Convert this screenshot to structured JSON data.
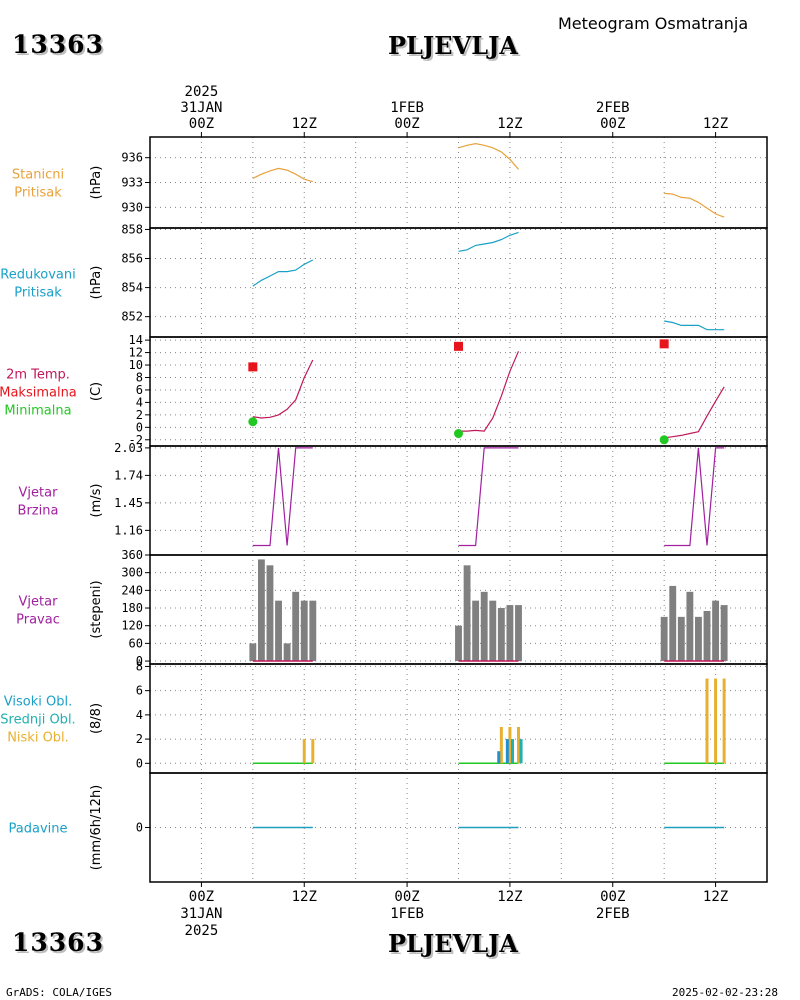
{
  "header": {
    "station_id": "13363",
    "station_name": "PLJEVLJA",
    "subtitle": "Meteogram Osmatranja"
  },
  "footer": {
    "credit": "GrADS: COLA/IGES",
    "timestamp": "2025-02-02-23:28"
  },
  "colors": {
    "pressure": "#e8a23c",
    "reduced": "#1aa0c8",
    "temp": "#c0185a",
    "tmax": "#e8141c",
    "tmin": "#22c822",
    "wind": "#a020a0",
    "dir_bar": "#808080",
    "cloud_low": "#e8b030",
    "cloud_mid": "#20b0b0",
    "cloud_high": "#2090d0",
    "precip": "#20a0c0"
  },
  "chart_data": {
    "type": "meteogram",
    "x_axis": {
      "unit": "hours from 2025-01-31 00Z",
      "range": [
        -6,
        66
      ],
      "top_ticks": [
        {
          "x": 0,
          "lines": [
            "2025",
            "31JAN",
            "00Z"
          ]
        },
        {
          "x": 12,
          "lines": [
            "12Z"
          ]
        },
        {
          "x": 24,
          "lines": [
            "1FEB",
            "00Z"
          ]
        },
        {
          "x": 36,
          "lines": [
            "12Z"
          ]
        },
        {
          "x": 48,
          "lines": [
            "2FEB",
            "00Z"
          ]
        },
        {
          "x": 60,
          "lines": [
            "12Z"
          ]
        }
      ],
      "bottom_ticks": [
        {
          "x": 0,
          "lines": [
            "00Z",
            "31JAN",
            "2025"
          ]
        },
        {
          "x": 12,
          "lines": [
            "12Z"
          ]
        },
        {
          "x": 24,
          "lines": [
            "00Z",
            "1FEB"
          ]
        },
        {
          "x": 36,
          "lines": [
            "12Z"
          ]
        },
        {
          "x": 48,
          "lines": [
            "00Z",
            "2FEB"
          ]
        },
        {
          "x": 60,
          "lines": [
            "12Z"
          ]
        }
      ]
    },
    "panels": [
      {
        "id": "station-pressure",
        "labels": [
          "Stanicni",
          "Pritisak"
        ],
        "label_color": "#e8a23c",
        "unit": "(hPa)",
        "ylim": [
          927.5,
          938.5
        ],
        "yticks": [
          930,
          933,
          936
        ],
        "series": [
          {
            "type": "line",
            "color": "#e8a23c",
            "points": [
              [
                6,
                933.5
              ],
              [
                7,
                934.0
              ],
              [
                8,
                934.4
              ],
              [
                9,
                934.7
              ],
              [
                10,
                934.5
              ],
              [
                11,
                934.0
              ],
              [
                12,
                933.4
              ],
              [
                13,
                933.1
              ]
            ]
          },
          {
            "type": "line",
            "color": "#e8a23c",
            "points": [
              [
                30,
                937.2
              ],
              [
                31,
                937.5
              ],
              [
                32,
                937.7
              ],
              [
                33,
                937.5
              ],
              [
                34,
                937.2
              ],
              [
                35,
                936.7
              ],
              [
                36,
                935.8
              ],
              [
                37,
                934.6
              ]
            ]
          },
          {
            "type": "line",
            "color": "#e8a23c",
            "points": [
              [
                54,
                931.7
              ],
              [
                55,
                931.6
              ],
              [
                56,
                931.2
              ],
              [
                57,
                931.1
              ],
              [
                58,
                930.6
              ],
              [
                59,
                929.9
              ],
              [
                60,
                929.2
              ],
              [
                61,
                928.8
              ]
            ]
          }
        ]
      },
      {
        "id": "reduced-pressure",
        "labels": [
          "Redukovani",
          "Pritisak"
        ],
        "label_color": "#1aa0c8",
        "unit": "(hPa)",
        "ylim": [
          850.6,
          858.1
        ],
        "yticks": [
          852,
          854,
          856,
          858
        ],
        "series": [
          {
            "type": "line",
            "color": "#1aa0c8",
            "points": [
              [
                6,
                854.1
              ],
              [
                7,
                854.5
              ],
              [
                8,
                854.8
              ],
              [
                9,
                855.1
              ],
              [
                10,
                855.1
              ],
              [
                11,
                855.2
              ],
              [
                12,
                855.6
              ],
              [
                13,
                855.9
              ]
            ]
          },
          {
            "type": "line",
            "color": "#1aa0c8",
            "points": [
              [
                30,
                856.5
              ],
              [
                31,
                856.6
              ],
              [
                32,
                856.9
              ],
              [
                33,
                857.0
              ],
              [
                34,
                857.1
              ],
              [
                35,
                857.3
              ],
              [
                36,
                857.6
              ],
              [
                37,
                857.8
              ]
            ]
          },
          {
            "type": "line",
            "color": "#1aa0c8",
            "points": [
              [
                54,
                851.7
              ],
              [
                55,
                851.6
              ],
              [
                56,
                851.4
              ],
              [
                57,
                851.4
              ],
              [
                58,
                851.4
              ],
              [
                59,
                851.1
              ],
              [
                60,
                851.1
              ],
              [
                61,
                851.1
              ]
            ]
          }
        ]
      },
      {
        "id": "temperature",
        "labels": [
          "2m Temp.",
          "Maksimalna",
          "Minimalna"
        ],
        "label_colors": [
          "#c0185a",
          "#e8141c",
          "#22c822"
        ],
        "unit": "(C)",
        "ylim": [
          -3,
          14.5
        ],
        "yticks": [
          -2,
          0,
          2,
          4,
          6,
          8,
          10,
          12,
          14
        ],
        "series": [
          {
            "type": "line",
            "color": "#c0185a",
            "points": [
              [
                6,
                1.7
              ],
              [
                7,
                1.5
              ],
              [
                8,
                1.6
              ],
              [
                9,
                2.0
              ],
              [
                10,
                2.9
              ],
              [
                11,
                4.4
              ],
              [
                12,
                8.0
              ],
              [
                13,
                10.8
              ]
            ]
          },
          {
            "type": "line",
            "color": "#c0185a",
            "points": [
              [
                30,
                -0.6
              ],
              [
                31,
                -0.6
              ],
              [
                32,
                -0.5
              ],
              [
                33,
                -0.6
              ],
              [
                34,
                1.5
              ],
              [
                35,
                5.0
              ],
              [
                36,
                9.0
              ],
              [
                37,
                12.2
              ]
            ]
          },
          {
            "type": "line",
            "color": "#c0185a",
            "points": [
              [
                54,
                -1.7
              ],
              [
                55,
                -1.5
              ],
              [
                56,
                -1.3
              ],
              [
                57,
                -1.0
              ],
              [
                58,
                -0.7
              ],
              [
                59,
                1.8
              ],
              [
                60,
                4.2
              ],
              [
                61,
                6.5
              ]
            ]
          },
          {
            "type": "square",
            "color": "#e8141c",
            "points": [
              [
                6,
                9.7
              ],
              [
                30,
                13.0
              ],
              [
                54,
                13.4
              ]
            ]
          },
          {
            "type": "circle",
            "color": "#22c822",
            "points": [
              [
                6,
                0.9
              ],
              [
                30,
                -1.0
              ],
              [
                54,
                -2.0
              ]
            ]
          }
        ]
      },
      {
        "id": "wind-speed",
        "labels": [
          "Vjetar",
          "Brzina"
        ],
        "label_color": "#a020a0",
        "unit": "(m/s)",
        "ylim": [
          0.9,
          2.05
        ],
        "yticks": [
          1.16,
          1.45,
          1.74,
          2.03
        ],
        "ytick_labels": [
          "1.16",
          "1.45",
          "1.74",
          "2.03"
        ],
        "series": [
          {
            "type": "line",
            "color": "#a020a0",
            "points": [
              [
                6,
                1.0
              ],
              [
                7,
                1.0
              ],
              [
                8,
                1.0
              ],
              [
                9,
                2.03
              ],
              [
                10,
                1.0
              ],
              [
                11,
                2.03
              ],
              [
                12,
                2.03
              ],
              [
                13,
                2.03
              ]
            ]
          },
          {
            "type": "line",
            "color": "#a020a0",
            "points": [
              [
                30,
                1.0
              ],
              [
                31,
                1.0
              ],
              [
                32,
                1.0
              ],
              [
                33,
                2.03
              ],
              [
                34,
                2.03
              ],
              [
                35,
                2.03
              ],
              [
                36,
                2.03
              ],
              [
                37,
                2.03
              ]
            ]
          },
          {
            "type": "line",
            "color": "#a020a0",
            "points": [
              [
                54,
                1.0
              ],
              [
                55,
                1.0
              ],
              [
                56,
                1.0
              ],
              [
                57,
                1.0
              ],
              [
                58,
                2.03
              ],
              [
                59,
                1.0
              ],
              [
                60,
                2.03
              ],
              [
                61,
                2.03
              ]
            ]
          }
        ]
      },
      {
        "id": "wind-direction",
        "labels": [
          "Vjetar",
          "Pravac"
        ],
        "label_color": "#a020a0",
        "unit": "(stepeni)",
        "ylim": [
          -10,
          360
        ],
        "yticks": [
          0,
          60,
          120,
          180,
          240,
          300,
          360
        ],
        "series": [
          {
            "type": "bars",
            "color": "#808080",
            "width": 0.8,
            "points": [
              [
                6,
                60
              ],
              [
                7,
                345
              ],
              [
                8,
                325
              ],
              [
                9,
                205
              ],
              [
                10,
                60
              ],
              [
                11,
                235
              ],
              [
                12,
                205
              ],
              [
                13,
                205
              ]
            ]
          },
          {
            "type": "bars",
            "color": "#808080",
            "width": 0.8,
            "points": [
              [
                30,
                120
              ],
              [
                31,
                325
              ],
              [
                32,
                205
              ],
              [
                33,
                235
              ],
              [
                34,
                205
              ],
              [
                35,
                180
              ],
              [
                36,
                190
              ],
              [
                37,
                190
              ]
            ]
          },
          {
            "type": "bars",
            "color": "#808080",
            "width": 0.8,
            "points": [
              [
                54,
                150
              ],
              [
                55,
                255
              ],
              [
                56,
                150
              ],
              [
                57,
                235
              ],
              [
                58,
                150
              ],
              [
                59,
                170
              ],
              [
                60,
                205
              ],
              [
                61,
                190
              ]
            ]
          },
          {
            "type": "baseline",
            "color": "#c0185a",
            "segments": [
              [
                6,
                13
              ],
              [
                30,
                37
              ],
              [
                54,
                61
              ]
            ],
            "value": 0
          }
        ]
      },
      {
        "id": "clouds",
        "labels": [
          "Visoki Obl.",
          "Srednji Obl.",
          "Niski Obl."
        ],
        "label_colors": [
          "#1aa0c8",
          "#20b0b0",
          "#e8b030"
        ],
        "unit": "(8/8)",
        "ylim": [
          -0.8,
          8.2
        ],
        "yticks": [
          0,
          2,
          4,
          6,
          8
        ],
        "series": [
          {
            "type": "baseline",
            "color": "#22c822",
            "segments": [
              [
                6,
                13
              ],
              [
                30,
                37
              ],
              [
                54,
                61
              ]
            ],
            "value": 0
          },
          {
            "type": "bars",
            "color": "#e8b030",
            "width": 0.35,
            "points": [
              [
                12,
                2
              ],
              [
                13,
                2
              ],
              [
                35,
                3
              ],
              [
                36,
                3
              ],
              [
                37,
                3
              ],
              [
                59,
                7
              ],
              [
                60,
                7
              ],
              [
                61,
                7
              ]
            ]
          },
          {
            "type": "bars",
            "color": "#20b0b0",
            "width": 0.35,
            "offset": 0.3,
            "points": [
              [
                36,
                2
              ],
              [
                37,
                2
              ]
            ]
          },
          {
            "type": "bars",
            "color": "#2090d0",
            "width": 0.35,
            "offset": -0.3,
            "points": [
              [
                35,
                1
              ],
              [
                36,
                2
              ]
            ]
          }
        ]
      },
      {
        "id": "precipitation",
        "labels": [
          "Padavine"
        ],
        "label_color": "#1aa0c8",
        "unit": "(mm/6h/12h)",
        "ylim": [
          -1,
          1
        ],
        "yticks": [
          0
        ],
        "series": [
          {
            "type": "baseline",
            "color": "#20a0c0",
            "segments": [
              [
                6,
                13
              ],
              [
                30,
                37
              ],
              [
                54,
                61
              ]
            ],
            "value": 0
          }
        ]
      }
    ]
  }
}
